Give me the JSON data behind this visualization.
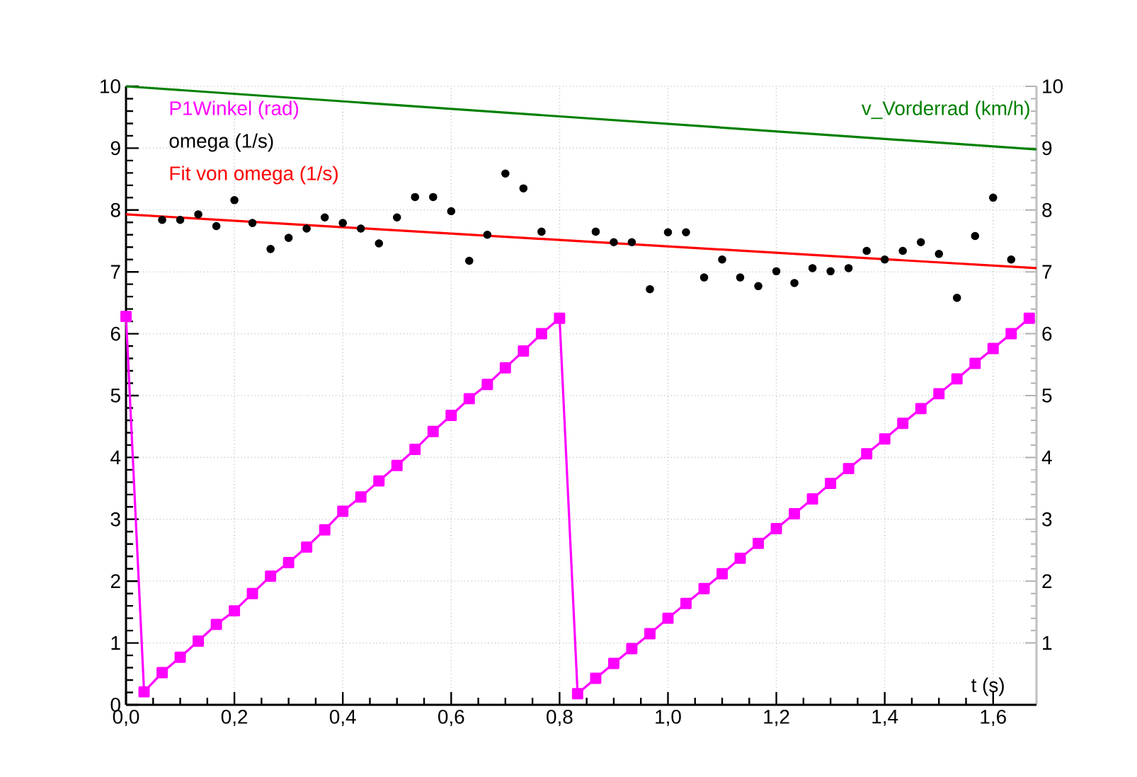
{
  "chart_data": {
    "type": "line",
    "xlabel": "t (s)",
    "xlim": [
      0,
      1.68
    ],
    "ylim": [
      0,
      10
    ],
    "y2lim": [
      0,
      10
    ],
    "xticks": [
      {
        "value": 0,
        "label": "0,0"
      },
      {
        "value": 0.2,
        "label": "0,2"
      },
      {
        "value": 0.4,
        "label": "0,4"
      },
      {
        "value": 0.6,
        "label": "0,6"
      },
      {
        "value": 0.8,
        "label": "0,8"
      },
      {
        "value": 1.0,
        "label": "1,0"
      },
      {
        "value": 1.2,
        "label": "1,2"
      },
      {
        "value": 1.4,
        "label": "1,4"
      },
      {
        "value": 1.6,
        "label": "1,6"
      }
    ],
    "yticks": [
      0,
      1,
      2,
      3,
      4,
      5,
      6,
      7,
      8,
      9,
      10
    ],
    "y2ticks": [
      1,
      2,
      3,
      4,
      5,
      6,
      7,
      8,
      9,
      10
    ],
    "grid": true,
    "series": [
      {
        "name": "P1Winkel (rad)",
        "color": "#ff00ff",
        "marker": "square",
        "x": [
          0,
          0.0333,
          0.0667,
          0.1,
          0.1333,
          0.1667,
          0.2,
          0.2333,
          0.2667,
          0.3,
          0.3333,
          0.3667,
          0.4,
          0.4333,
          0.4667,
          0.5,
          0.5333,
          0.5667,
          0.6,
          0.6333,
          0.6667,
          0.7,
          0.7333,
          0.7667,
          0.8,
          0.8333,
          0.8667,
          0.9,
          0.9333,
          0.9667,
          1.0,
          1.0333,
          1.0667,
          1.1,
          1.1333,
          1.1667,
          1.2,
          1.2333,
          1.2667,
          1.3,
          1.3333,
          1.3667,
          1.4,
          1.4333,
          1.4667,
          1.5,
          1.5333,
          1.5667,
          1.6,
          1.6333,
          1.6667
        ],
        "values": [
          6.28,
          0.21,
          0.52,
          0.77,
          1.03,
          1.3,
          1.52,
          1.8,
          2.08,
          2.3,
          2.55,
          2.83,
          3.13,
          3.36,
          3.62,
          3.87,
          4.13,
          4.42,
          4.68,
          4.95,
          5.18,
          5.45,
          5.72,
          6.0,
          6.25,
          0.18,
          0.43,
          0.67,
          0.91,
          1.15,
          1.4,
          1.64,
          1.88,
          2.12,
          2.37,
          2.61,
          2.85,
          3.09,
          3.33,
          3.58,
          3.82,
          4.06,
          4.3,
          4.55,
          4.79,
          5.03,
          5.27,
          5.52,
          5.76,
          6.0,
          6.25
        ]
      },
      {
        "name": "omega (1/s)",
        "color": "#000000",
        "type": "scatter",
        "marker": "circle",
        "x": [
          0.0667,
          0.1,
          0.1333,
          0.1667,
          0.2,
          0.2333,
          0.2667,
          0.3,
          0.3333,
          0.3667,
          0.4,
          0.4333,
          0.4667,
          0.5,
          0.5333,
          0.5667,
          0.6,
          0.6333,
          0.6667,
          0.7,
          0.7333,
          0.7667,
          0.8667,
          0.9,
          0.9333,
          0.9667,
          1.0,
          1.0333,
          1.0667,
          1.1,
          1.1333,
          1.1667,
          1.2,
          1.2333,
          1.2667,
          1.3,
          1.3333,
          1.3667,
          1.4,
          1.4333,
          1.4667,
          1.5,
          1.5333,
          1.5667,
          1.6,
          1.6333
        ],
        "values": [
          7.84,
          7.84,
          7.93,
          7.74,
          8.16,
          7.79,
          7.37,
          7.55,
          7.7,
          7.88,
          7.79,
          7.7,
          7.46,
          7.88,
          8.21,
          8.21,
          7.98,
          7.18,
          7.6,
          8.59,
          8.35,
          7.65,
          7.65,
          7.48,
          7.48,
          6.72,
          7.64,
          7.64,
          6.91,
          7.2,
          6.91,
          6.77,
          7.01,
          6.82,
          7.06,
          7.01,
          7.06,
          7.34,
          7.2,
          7.34,
          7.48,
          7.29,
          6.58,
          7.58,
          8.2,
          7.2
        ]
      },
      {
        "name": "Fit von omega (1/s)",
        "color": "#ff0000",
        "x": [
          0,
          1.68
        ],
        "values": [
          7.93,
          7.06
        ]
      },
      {
        "name": "v_Vorderrad (km/h)",
        "color": "#008000",
        "x": [
          0,
          1.68
        ],
        "values": [
          10.0,
          8.98
        ]
      }
    ]
  }
}
